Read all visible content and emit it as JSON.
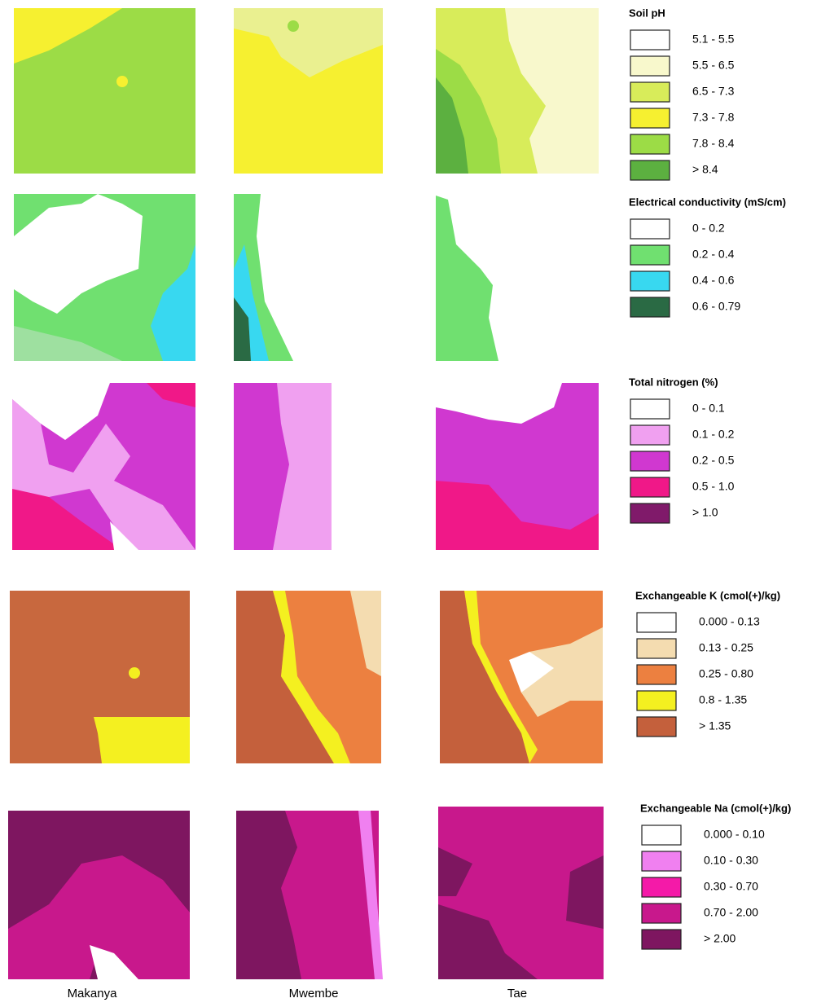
{
  "columns": [
    "Makanya",
    "Mwembe",
    "Tae"
  ],
  "legends": [
    {
      "title": "Soil pH",
      "items": [
        {
          "label": "5.1 - 5.5",
          "color": "#ffffff"
        },
        {
          "label": "5.5 - 6.5",
          "color": "#f8f8cc"
        },
        {
          "label": "6.5 - 7.3",
          "color": "#d8ec5a"
        },
        {
          "label": "7.3 - 7.8",
          "color": "#f6f030"
        },
        {
          "label": "7.8 - 8.4",
          "color": "#9cdc46"
        },
        {
          "label": "> 8.4",
          "color": "#5cb040"
        }
      ]
    },
    {
      "title": "Electrical conductivity (mS/cm)",
      "items": [
        {
          "label": "0 - 0.2",
          "color": "#ffffff"
        },
        {
          "label": "0.2 - 0.4",
          "color": "#70e070"
        },
        {
          "label": "0.4 - 0.6",
          "color": "#38d8f0"
        },
        {
          "label": "0.6 - 0.79",
          "color": "#2a6a44"
        }
      ]
    },
    {
      "title": "Total nitrogen (%)",
      "items": [
        {
          "label": "0 - 0.1",
          "color": "#ffffff"
        },
        {
          "label": "0.1 - 0.2",
          "color": "#f0a0f0"
        },
        {
          "label": "0.2 - 0.5",
          "color": "#d038d0"
        },
        {
          "label": "0.5 - 1.0",
          "color": "#f01888"
        },
        {
          "label": "> 1.0",
          "color": "#801a6a"
        }
      ]
    },
    {
      "title": "Exchangeable K (cmol(+)/kg)",
      "items": [
        {
          "label": "0.000 - 0.13",
          "color": "#ffffff"
        },
        {
          "label": "0.13 - 0.25",
          "color": "#f4dcb0"
        },
        {
          "label": "0.25 - 0.80",
          "color": "#ec8040"
        },
        {
          "label": "0.8 - 1.35",
          "color": "#f4f020"
        },
        {
          "label": "> 1.35",
          "color": "#c4603c"
        }
      ]
    },
    {
      "title": "Exchangeable Na (cmol(+)/kg)",
      "items": [
        {
          "label": "0.000 - 0.10",
          "color": "#ffffff"
        },
        {
          "label": "0.10 - 0.30",
          "color": "#f080f0"
        },
        {
          "label": "0.30 - 0.70",
          "color": "#f41aa8"
        },
        {
          "label": "0.70 - 2.00",
          "color": "#c8188c"
        },
        {
          "label": "> 2.00",
          "color": "#7e1660"
        }
      ]
    }
  ]
}
